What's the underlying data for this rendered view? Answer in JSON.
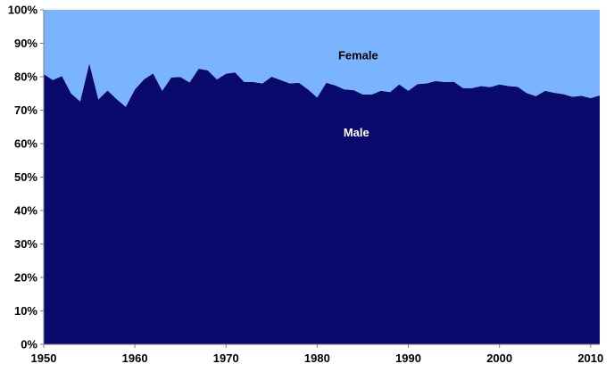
{
  "chart_data": {
    "type": "area",
    "stacked": "percent",
    "x": [
      1950,
      1951,
      1952,
      1953,
      1954,
      1955,
      1956,
      1957,
      1958,
      1959,
      1960,
      1961,
      1962,
      1963,
      1964,
      1965,
      1966,
      1967,
      1968,
      1969,
      1970,
      1971,
      1972,
      1973,
      1974,
      1975,
      1976,
      1977,
      1978,
      1979,
      1980,
      1981,
      1982,
      1983,
      1984,
      1985,
      1986,
      1987,
      1988,
      1989,
      1990,
      1991,
      1992,
      1993,
      1994,
      1995,
      1996,
      1997,
      1998,
      1999,
      2000,
      2001,
      2002,
      2003,
      2004,
      2005,
      2006,
      2007,
      2008,
      2009,
      2010,
      2011
    ],
    "series": [
      {
        "name": "Male",
        "color": "#0a0a6e",
        "values": [
          80.8,
          79.0,
          80.2,
          75.0,
          72.6,
          84.0,
          73.2,
          75.9,
          73.3,
          71.0,
          76.2,
          79.2,
          81.0,
          75.8,
          79.8,
          79.9,
          78.3,
          82.4,
          81.9,
          79.2,
          80.9,
          81.3,
          78.4,
          78.4,
          78.0,
          80.0,
          79.0,
          78.0,
          78.2,
          76.2,
          73.8,
          78.2,
          77.4,
          76.2,
          76.0,
          74.7,
          74.7,
          75.8,
          75.4,
          77.7,
          75.8,
          77.8,
          78.0,
          78.7,
          78.4,
          78.5,
          76.6,
          76.6,
          77.2,
          76.9,
          77.7,
          77.2,
          77.0,
          75.1,
          74.2,
          75.8,
          75.2,
          74.8,
          74.0,
          74.3,
          73.6,
          74.4
        ]
      },
      {
        "name": "Female",
        "color": "#7ab4ff",
        "values": [
          19.2,
          21.0,
          19.8,
          25.0,
          27.4,
          16.0,
          26.8,
          24.1,
          26.7,
          29.0,
          23.8,
          20.8,
          19.0,
          24.2,
          20.2,
          20.1,
          21.7,
          17.6,
          18.1,
          20.8,
          19.1,
          18.7,
          21.6,
          21.6,
          22.0,
          20.0,
          21.0,
          22.0,
          21.8,
          23.8,
          26.2,
          21.8,
          22.6,
          23.8,
          24.0,
          25.3,
          25.3,
          24.2,
          24.6,
          22.3,
          24.2,
          22.2,
          22.0,
          21.3,
          21.6,
          21.5,
          23.4,
          23.4,
          22.8,
          23.1,
          22.3,
          22.8,
          23.0,
          24.9,
          25.8,
          24.2,
          24.8,
          25.2,
          26.0,
          25.7,
          26.4,
          25.6
        ]
      }
    ],
    "xlim": [
      1950,
      2011
    ],
    "ylim": [
      0,
      100
    ],
    "x_ticks": [
      {
        "value": 1950,
        "label": "1950"
      },
      {
        "value": 1960,
        "label": "1960"
      },
      {
        "value": 1970,
        "label": "1970"
      },
      {
        "value": 1980,
        "label": "1980"
      },
      {
        "value": 1990,
        "label": "1990"
      },
      {
        "value": 2000,
        "label": "2000"
      },
      {
        "value": 2010,
        "label": "2010"
      }
    ],
    "y_ticks": [
      {
        "value": 0,
        "label": "0%"
      },
      {
        "value": 10,
        "label": "10%"
      },
      {
        "value": 20,
        "label": "20%"
      },
      {
        "value": 30,
        "label": "30%"
      },
      {
        "value": 40,
        "label": "40%"
      },
      {
        "value": 50,
        "label": "50%"
      },
      {
        "value": 60,
        "label": "60%"
      },
      {
        "value": 70,
        "label": "70%"
      },
      {
        "value": 80,
        "label": "80%"
      },
      {
        "value": 90,
        "label": "90%"
      },
      {
        "value": 100,
        "label": "100%"
      }
    ],
    "annotations": [
      {
        "text": "Female",
        "x": 1984.5,
        "y": 86.5,
        "color": "#000000"
      },
      {
        "text": "Male",
        "x": 1984.3,
        "y": 63.5,
        "color": "#ffffff"
      }
    ],
    "grid": false,
    "legend": "none"
  }
}
